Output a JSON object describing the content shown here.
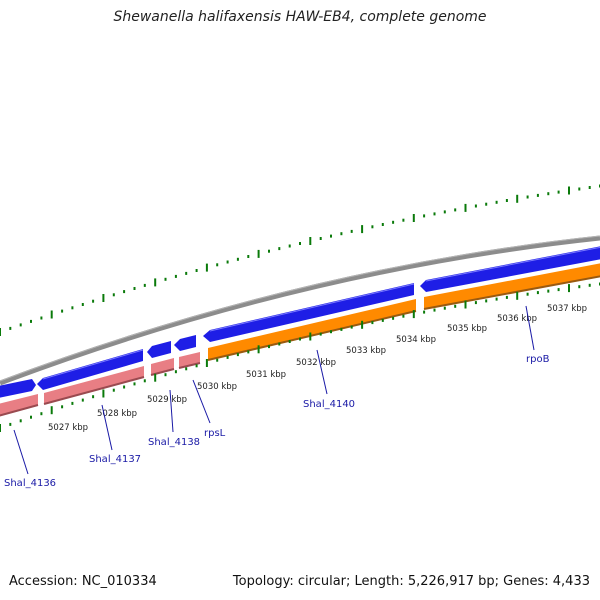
{
  "title": "Shewanella halifaxensis HAW-EB4, complete genome",
  "footer": {
    "accession": "Accession: NC_010334",
    "summary": "Topology: circular; Length: 5,226,917 bp; Genes: 4,433"
  },
  "colors": {
    "backbone": "#8c8c8c",
    "forward_cds": "#1e1ee6",
    "reverse_cds": "#e87e84",
    "reverse_cds_orange": "#ff8a00",
    "tick": "#0a7a0a",
    "gene_label": "#1a1aa6",
    "scale_label": "#222222"
  },
  "scale_ticks": [
    {
      "label": "5027 kbp"
    },
    {
      "label": "5028 kbp"
    },
    {
      "label": "5029 kbp"
    },
    {
      "label": "5030 kbp"
    },
    {
      "label": "5031 kbp"
    },
    {
      "label": "5032 kbp"
    },
    {
      "label": "5033 kbp"
    },
    {
      "label": "5034 kbp"
    },
    {
      "label": "5035 kbp"
    },
    {
      "label": "5036 kbp"
    },
    {
      "label": "5037 kbp"
    }
  ],
  "gene_labels": [
    {
      "label": "Shal_4136"
    },
    {
      "label": "Shal_4137"
    },
    {
      "label": "Shal_4138"
    },
    {
      "label": "rpsL"
    },
    {
      "label": "Shal_4140"
    },
    {
      "label": "rpoB"
    }
  ]
}
